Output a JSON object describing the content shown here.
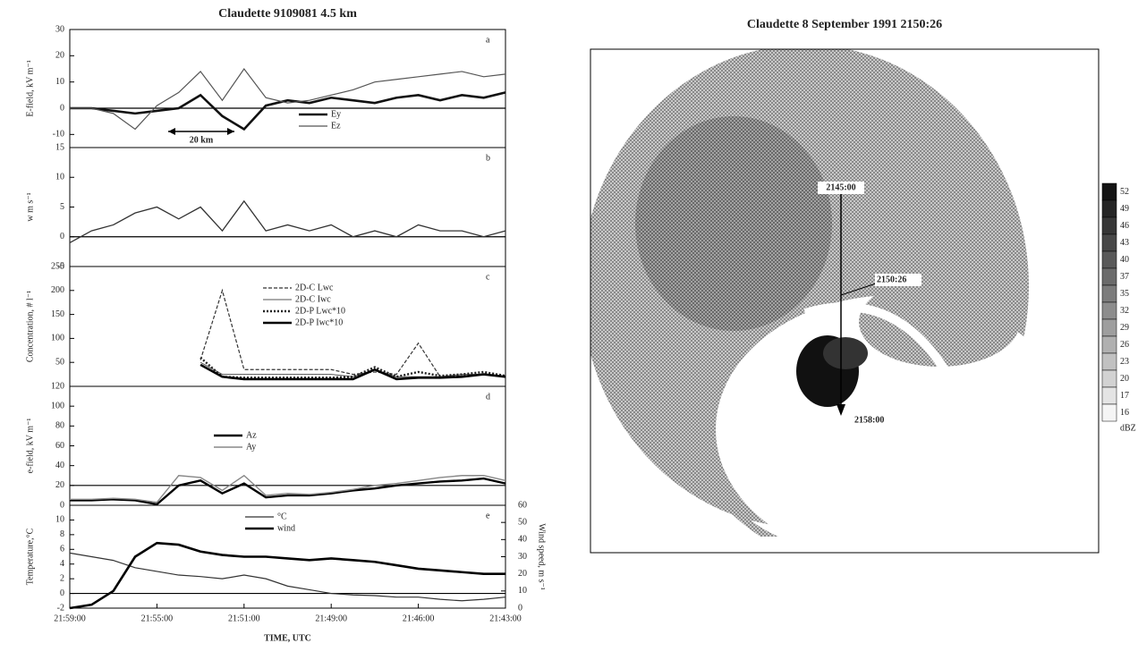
{
  "chart_data": [
    {
      "type": "line",
      "title": "Claudette  9109081   4.5 km",
      "panel_label": "a",
      "ylabel": "E-field, kV m⁻¹",
      "annotation": "20 km",
      "x": [
        0,
        3,
        6,
        9,
        12,
        15,
        18,
        21,
        24,
        27,
        30,
        33,
        36,
        39,
        42,
        45,
        48,
        51,
        54,
        57,
        60
      ],
      "xlim": [
        0,
        60
      ],
      "ylim": [
        -15,
        30
      ],
      "yticks": [
        -10,
        0,
        10,
        20,
        30
      ],
      "hlines": [
        0
      ],
      "series": [
        {
          "name": "Ey",
          "color": "#111",
          "width": 2.6,
          "linestyle": "solid",
          "values": [
            0,
            0,
            -1,
            -2,
            -1,
            0,
            5,
            -3,
            -8,
            1,
            3,
            2,
            4,
            3,
            2,
            4,
            5,
            3,
            5,
            4,
            6
          ]
        },
        {
          "name": "Ez",
          "color": "#555",
          "width": 1.2,
          "linestyle": "solid",
          "values": [
            0,
            0,
            -2,
            -8,
            1,
            6,
            14,
            3,
            15,
            4,
            2,
            3,
            5,
            7,
            10,
            11,
            12,
            13,
            14,
            12,
            13
          ]
        }
      ]
    },
    {
      "type": "line",
      "panel_label": "b",
      "ylabel": "w m s⁻¹",
      "x": [
        0,
        3,
        6,
        9,
        12,
        15,
        18,
        21,
        24,
        27,
        30,
        33,
        36,
        39,
        42,
        45,
        48,
        51,
        54,
        57,
        60
      ],
      "xlim": [
        0,
        60
      ],
      "ylim": [
        -5,
        15
      ],
      "yticks": [
        -5,
        0,
        5,
        10,
        15
      ],
      "hlines": [
        0
      ],
      "values": [
        -1,
        1,
        2,
        4,
        5,
        3,
        5,
        1,
        6,
        1,
        2,
        1,
        2,
        0,
        1,
        0,
        2,
        1,
        1,
        0,
        1
      ],
      "color": "#333"
    },
    {
      "type": "line",
      "panel_label": "c",
      "ylabel": "Concentration, # l⁻¹",
      "x": [
        0,
        3,
        6,
        9,
        12,
        15,
        18,
        21,
        24,
        27,
        30,
        33,
        36,
        39,
        42,
        45,
        48,
        51,
        54,
        57,
        60
      ],
      "xlim": [
        0,
        60
      ],
      "ylim": [
        0,
        250
      ],
      "yticks": [
        50,
        100,
        150,
        200,
        250
      ],
      "series": [
        {
          "name": "2D-C Lwc",
          "color": "#333",
          "width": 1.2,
          "linestyle": "dashed",
          "values": [
            null,
            null,
            null,
            null,
            null,
            null,
            55,
            200,
            35,
            35,
            35,
            35,
            35,
            25,
            30,
            25,
            90,
            20,
            22,
            25,
            20
          ]
        },
        {
          "name": "2D-C Iwc",
          "color": "#555",
          "width": 1,
          "linestyle": "solid",
          "values": [
            null,
            null,
            null,
            null,
            null,
            null,
            50,
            25,
            25,
            25,
            25,
            25,
            25,
            20,
            35,
            20,
            20,
            20,
            25,
            25,
            20
          ]
        },
        {
          "name": "2D-P Lwc*10",
          "color": "#222",
          "width": 2.4,
          "linestyle": "dotted",
          "values": [
            null,
            null,
            null,
            null,
            null,
            null,
            60,
            20,
            18,
            18,
            18,
            18,
            18,
            20,
            40,
            20,
            30,
            22,
            25,
            30,
            22
          ]
        },
        {
          "name": "2D-P Iwc*10",
          "color": "#000",
          "width": 2.6,
          "linestyle": "solid",
          "values": [
            null,
            null,
            null,
            null,
            null,
            null,
            45,
            20,
            15,
            15,
            15,
            15,
            15,
            15,
            35,
            15,
            18,
            18,
            20,
            25,
            20
          ]
        }
      ]
    },
    {
      "type": "line",
      "panel_label": "d",
      "ylabel": "e-field, kV m⁻¹",
      "x": [
        0,
        3,
        6,
        9,
        12,
        15,
        18,
        21,
        24,
        27,
        30,
        33,
        36,
        39,
        42,
        45,
        48,
        51,
        54,
        57,
        60
      ],
      "xlim": [
        0,
        60
      ],
      "ylim": [
        0,
        120
      ],
      "yticks": [
        0,
        20,
        40,
        60,
        80,
        100,
        120
      ],
      "hlines": [
        20
      ],
      "series": [
        {
          "name": "Az",
          "color": "#000",
          "width": 2.4,
          "linestyle": "solid",
          "values": [
            5,
            5,
            6,
            5,
            1,
            20,
            25,
            12,
            22,
            8,
            10,
            10,
            12,
            15,
            17,
            20,
            22,
            24,
            25,
            27,
            22
          ]
        },
        {
          "name": "Ay",
          "color": "#888",
          "width": 1.4,
          "linestyle": "solid",
          "values": [
            6,
            6,
            7,
            6,
            3,
            30,
            28,
            15,
            30,
            10,
            12,
            11,
            13,
            16,
            20,
            22,
            25,
            28,
            30,
            30,
            25
          ]
        }
      ]
    },
    {
      "type": "line",
      "panel_label": "e",
      "ylabel": "Temperature,°C",
      "y2label": "Wind speed, m s⁻¹",
      "xlabel": "TIME, UTC",
      "x": [
        0,
        3,
        6,
        9,
        12,
        15,
        18,
        21,
        24,
        27,
        30,
        33,
        36,
        39,
        42,
        45,
        48,
        51,
        54,
        57,
        60
      ],
      "xlim": [
        0,
        60
      ],
      "xticks": [
        {
          "value": 0,
          "label": "21:59:00"
        },
        {
          "value": 12,
          "label": "21:55:00"
        },
        {
          "value": 24,
          "label": "21:51:00"
        },
        {
          "value": 36,
          "label": "21:49:00"
        },
        {
          "value": 48,
          "label": "21:46:00"
        },
        {
          "value": 60,
          "label": "21:43:00"
        }
      ],
      "ylim": [
        -2,
        12
      ],
      "yticks": [
        -2,
        0,
        2,
        4,
        6,
        8,
        10
      ],
      "y2lim": [
        0,
        60
      ],
      "y2ticks": [
        0,
        10,
        20,
        30,
        40,
        50,
        60
      ],
      "hlines": [
        0
      ],
      "series": [
        {
          "name": "°C",
          "color": "#333",
          "width": 1.2,
          "linestyle": "solid",
          "values": [
            5.5,
            5,
            4.5,
            3.5,
            3,
            2.5,
            2.3,
            2,
            2.5,
            2,
            1,
            0.5,
            0,
            -0.2,
            -0.3,
            -0.5,
            -0.5,
            -0.8,
            -1,
            -0.8,
            -0.5
          ]
        },
        {
          "name": "wind",
          "color": "#000",
          "width": 2.6,
          "linestyle": "solid",
          "axis": "y2",
          "values": [
            0,
            2,
            10,
            30,
            38,
            37,
            33,
            31,
            30,
            30,
            29,
            28,
            29,
            28,
            27,
            25,
            23,
            22,
            21,
            20,
            20
          ]
        }
      ]
    },
    {
      "type": "radar",
      "title": "Claudette 8 September 1991  2150:26",
      "annotations": [
        "2145:00",
        "2150:26",
        "2158:00"
      ],
      "colorbar": {
        "ticks": [
          52,
          49,
          46,
          43,
          40,
          37,
          35,
          32,
          29,
          26,
          23,
          20,
          17,
          16
        ],
        "label": "dBZ"
      }
    }
  ]
}
